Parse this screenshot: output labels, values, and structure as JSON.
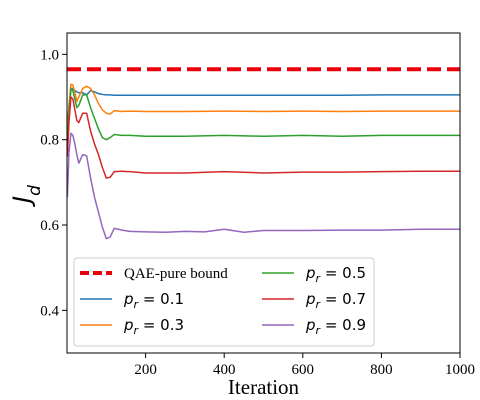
{
  "chart_data": {
    "type": "line",
    "xlabel": "Iteration",
    "ylabel": "J_d",
    "xlim": [
      0,
      1000
    ],
    "ylim": [
      0.3,
      1.05
    ],
    "xticks": [
      "200",
      "400",
      "600",
      "800",
      "1000"
    ],
    "yticks": [
      "0.4",
      "0.6",
      "0.8",
      "1.0"
    ],
    "grid": false,
    "legend_placement": "lower-left",
    "bound": {
      "name": "QAE-pure bound",
      "value": 0.965,
      "color": "#e8000b",
      "style": "dashed"
    },
    "series": [
      {
        "name": "p_r = 0.1",
        "label_var": "p",
        "label_sub": "r",
        "label_rest": " = 0.1",
        "color": "#1f77b4",
        "x": [
          1,
          5,
          10,
          15,
          20,
          25,
          30,
          40,
          50,
          60,
          70,
          80,
          90,
          100,
          110,
          120,
          140,
          160,
          200,
          300,
          400,
          500,
          600,
          700,
          800,
          900,
          1000
        ],
        "y": [
          0.82,
          0.88,
          0.915,
          0.92,
          0.915,
          0.912,
          0.91,
          0.91,
          0.905,
          0.915,
          0.912,
          0.908,
          0.906,
          0.905,
          0.905,
          0.904,
          0.904,
          0.904,
          0.904,
          0.904,
          0.904,
          0.904,
          0.904,
          0.904,
          0.905,
          0.905,
          0.905
        ]
      },
      {
        "name": "p_r = 0.3",
        "label_var": "p",
        "label_sub": "r",
        "label_rest": " = 0.3",
        "color": "#ff7f0e",
        "x": [
          1,
          5,
          10,
          15,
          20,
          25,
          30,
          40,
          50,
          60,
          70,
          80,
          90,
          100,
          110,
          120,
          140,
          160,
          200,
          300,
          400,
          500,
          600,
          700,
          800,
          900,
          1000
        ],
        "y": [
          0.8,
          0.88,
          0.93,
          0.928,
          0.91,
          0.89,
          0.9,
          0.92,
          0.925,
          0.92,
          0.905,
          0.885,
          0.87,
          0.862,
          0.86,
          0.868,
          0.866,
          0.867,
          0.866,
          0.866,
          0.867,
          0.866,
          0.867,
          0.866,
          0.867,
          0.867,
          0.867
        ]
      },
      {
        "name": "p_r = 0.5",
        "label_var": "p",
        "label_sub": "r",
        "label_rest": " = 0.5",
        "color": "#2ca02c",
        "x": [
          1,
          5,
          10,
          15,
          20,
          25,
          30,
          40,
          50,
          60,
          70,
          80,
          90,
          100,
          110,
          120,
          140,
          160,
          200,
          300,
          400,
          500,
          600,
          700,
          800,
          900,
          1000
        ],
        "y": [
          0.79,
          0.86,
          0.92,
          0.915,
          0.895,
          0.875,
          0.88,
          0.905,
          0.905,
          0.875,
          0.85,
          0.825,
          0.805,
          0.8,
          0.805,
          0.812,
          0.81,
          0.81,
          0.808,
          0.808,
          0.81,
          0.808,
          0.81,
          0.808,
          0.81,
          0.81,
          0.81
        ]
      },
      {
        "name": "p_r = 0.7",
        "label_var": "p",
        "label_sub": "r",
        "label_rest": " = 0.7",
        "color": "#d62728",
        "x": [
          1,
          5,
          10,
          15,
          20,
          25,
          30,
          40,
          50,
          60,
          70,
          80,
          90,
          100,
          110,
          120,
          140,
          160,
          200,
          300,
          400,
          500,
          600,
          700,
          800,
          900,
          1000
        ],
        "y": [
          0.76,
          0.84,
          0.9,
          0.895,
          0.87,
          0.845,
          0.84,
          0.862,
          0.862,
          0.82,
          0.79,
          0.765,
          0.735,
          0.71,
          0.712,
          0.725,
          0.726,
          0.725,
          0.722,
          0.722,
          0.725,
          0.722,
          0.724,
          0.724,
          0.725,
          0.726,
          0.726
        ]
      },
      {
        "name": "p_r = 0.9",
        "label_var": "p",
        "label_sub": "r",
        "label_rest": " = 0.9",
        "color": "#9467bd",
        "x": [
          1,
          5,
          10,
          15,
          20,
          25,
          30,
          40,
          50,
          60,
          70,
          80,
          90,
          100,
          110,
          120,
          140,
          160,
          200,
          250,
          300,
          350,
          400,
          450,
          500,
          600,
          700,
          800,
          900,
          1000
        ],
        "y": [
          0.665,
          0.77,
          0.815,
          0.81,
          0.79,
          0.765,
          0.745,
          0.765,
          0.762,
          0.71,
          0.665,
          0.63,
          0.595,
          0.568,
          0.572,
          0.592,
          0.588,
          0.585,
          0.584,
          0.583,
          0.585,
          0.584,
          0.59,
          0.583,
          0.587,
          0.587,
          0.588,
          0.588,
          0.59,
          0.59
        ]
      }
    ]
  }
}
